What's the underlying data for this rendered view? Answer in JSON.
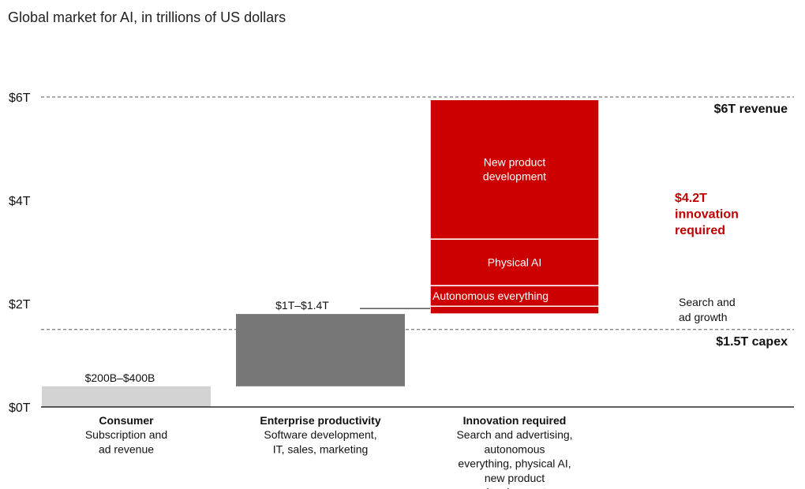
{
  "colors": {
    "consumer": "#d3d3d3",
    "enterprise": "#777777",
    "innovation": "#cc0000",
    "axis": "#000000",
    "reference": "#777777"
  },
  "chart_data": {
    "type": "bar",
    "title": "Global market for AI, in trillions of US dollars",
    "ylim": [
      0,
      6
    ],
    "y_ticks": [
      {
        "value": 0,
        "label": "$0T"
      },
      {
        "value": 2,
        "label": "$2T"
      },
      {
        "value": 4,
        "label": "$4T"
      },
      {
        "value": 6,
        "label": "$6T"
      }
    ],
    "reference_lines": [
      {
        "value": 6,
        "label": "$6T revenue"
      },
      {
        "value": 1.5,
        "label": "$1.5T capex"
      }
    ],
    "categories": [
      {
        "name": "Consumer",
        "description": [
          "Subscription and",
          "ad revenue"
        ],
        "value_label": "$200B–$400B",
        "color_key": "consumer",
        "segments": [
          {
            "label": "",
            "label_lines": [],
            "bottom": 0,
            "top": 0.4
          }
        ]
      },
      {
        "name": "Enterprise productivity",
        "description": [
          "Software development,",
          "IT, sales, marketing"
        ],
        "value_label": "$1T–$1.4T",
        "color_key": "enterprise",
        "segments": [
          {
            "label": "",
            "label_lines": [],
            "bottom": 0.4,
            "top": 1.8
          }
        ]
      },
      {
        "name": "Innovation required",
        "description": [
          "Search and advertising,",
          "autonomous",
          "everything, physical AI,",
          "new product",
          "development"
        ],
        "value_label": "",
        "color_key": "innovation",
        "segments": [
          {
            "label": "Search and ad growth",
            "label_lines": [],
            "bottom": 1.8,
            "top": 1.95
          },
          {
            "label": "Autonomous everything",
            "label_lines": [
              "Autonomous everything"
            ],
            "bottom": 1.95,
            "top": 2.35
          },
          {
            "label": "Physical AI",
            "label_lines": [
              "Physical AI"
            ],
            "bottom": 2.35,
            "top": 3.25
          },
          {
            "label": "New product development",
            "label_lines": [
              "New product",
              "development"
            ],
            "bottom": 3.25,
            "top": 5.95
          }
        ]
      }
    ],
    "annotations": {
      "innovation_callout": [
        "$4.2T",
        "innovation",
        "required"
      ],
      "search_note": [
        "Search and",
        "ad growth"
      ]
    }
  }
}
